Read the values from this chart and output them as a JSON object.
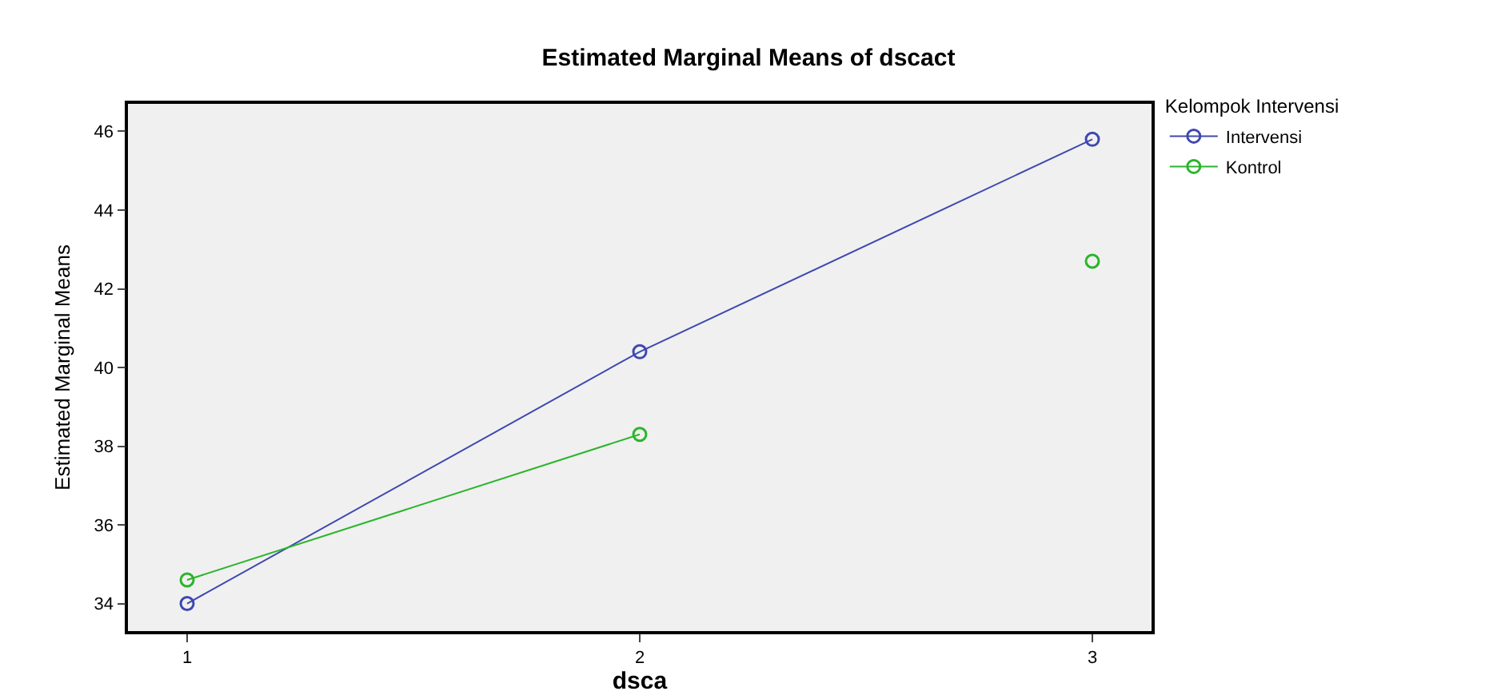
{
  "chart_data": {
    "type": "line",
    "title": "Estimated Marginal Means of dscact",
    "xlabel": "dsca",
    "ylabel": "Estimated Marginal Means",
    "legend_title": "Kelompok Intervensi",
    "categories": [
      "1",
      "2",
      "3"
    ],
    "series": [
      {
        "name": "Intervensi",
        "color": "#3f48b0",
        "values": [
          34.0,
          40.4,
          45.8
        ]
      },
      {
        "name": "Kontrol",
        "color": "#2ab52a",
        "values": [
          34.6,
          38.3,
          null
        ]
      },
      {
        "type": "scatter",
        "color": "#2ab52a",
        "values": [
          null,
          null,
          42.7
        ]
      }
    ],
    "ylim": [
      33.3,
      46.7
    ],
    "yticks": [
      34,
      36,
      38,
      40,
      42,
      44,
      46
    ],
    "grid": false,
    "legend": "top right",
    "marker": "circle",
    "line_style": "solid"
  }
}
